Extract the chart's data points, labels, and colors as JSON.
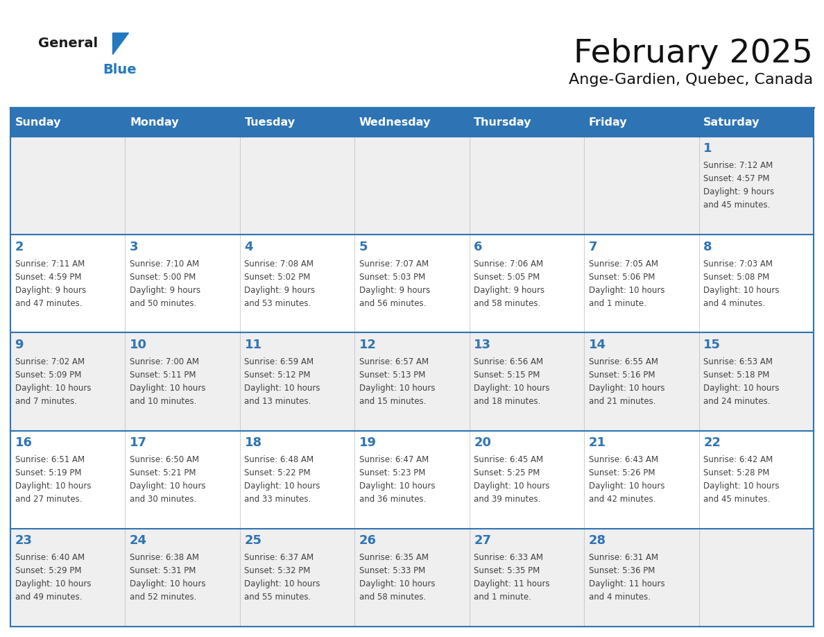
{
  "title": "February 2025",
  "subtitle": "Ange-Gardien, Quebec, Canada",
  "days_of_week": [
    "Sunday",
    "Monday",
    "Tuesday",
    "Wednesday",
    "Thursday",
    "Friday",
    "Saturday"
  ],
  "header_bg": "#2E74B5",
  "header_text": "#FFFFFF",
  "row_bg_light": "#FFFFFF",
  "row_bg_dark": "#EFEFEF",
  "separator_color": "#2E74B5",
  "day_number_color": "#2E74B5",
  "cell_text_color": "#404040",
  "logo_general_color": "#1a1a1a",
  "logo_blue_color": "#2478BE",
  "weeks": [
    {
      "days": [
        {
          "date": null,
          "info": null
        },
        {
          "date": null,
          "info": null
        },
        {
          "date": null,
          "info": null
        },
        {
          "date": null,
          "info": null
        },
        {
          "date": null,
          "info": null
        },
        {
          "date": null,
          "info": null
        },
        {
          "date": 1,
          "info": "Sunrise: 7:12 AM\nSunset: 4:57 PM\nDaylight: 9 hours\nand 45 minutes."
        }
      ]
    },
    {
      "days": [
        {
          "date": 2,
          "info": "Sunrise: 7:11 AM\nSunset: 4:59 PM\nDaylight: 9 hours\nand 47 minutes."
        },
        {
          "date": 3,
          "info": "Sunrise: 7:10 AM\nSunset: 5:00 PM\nDaylight: 9 hours\nand 50 minutes."
        },
        {
          "date": 4,
          "info": "Sunrise: 7:08 AM\nSunset: 5:02 PM\nDaylight: 9 hours\nand 53 minutes."
        },
        {
          "date": 5,
          "info": "Sunrise: 7:07 AM\nSunset: 5:03 PM\nDaylight: 9 hours\nand 56 minutes."
        },
        {
          "date": 6,
          "info": "Sunrise: 7:06 AM\nSunset: 5:05 PM\nDaylight: 9 hours\nand 58 minutes."
        },
        {
          "date": 7,
          "info": "Sunrise: 7:05 AM\nSunset: 5:06 PM\nDaylight: 10 hours\nand 1 minute."
        },
        {
          "date": 8,
          "info": "Sunrise: 7:03 AM\nSunset: 5:08 PM\nDaylight: 10 hours\nand 4 minutes."
        }
      ]
    },
    {
      "days": [
        {
          "date": 9,
          "info": "Sunrise: 7:02 AM\nSunset: 5:09 PM\nDaylight: 10 hours\nand 7 minutes."
        },
        {
          "date": 10,
          "info": "Sunrise: 7:00 AM\nSunset: 5:11 PM\nDaylight: 10 hours\nand 10 minutes."
        },
        {
          "date": 11,
          "info": "Sunrise: 6:59 AM\nSunset: 5:12 PM\nDaylight: 10 hours\nand 13 minutes."
        },
        {
          "date": 12,
          "info": "Sunrise: 6:57 AM\nSunset: 5:13 PM\nDaylight: 10 hours\nand 15 minutes."
        },
        {
          "date": 13,
          "info": "Sunrise: 6:56 AM\nSunset: 5:15 PM\nDaylight: 10 hours\nand 18 minutes."
        },
        {
          "date": 14,
          "info": "Sunrise: 6:55 AM\nSunset: 5:16 PM\nDaylight: 10 hours\nand 21 minutes."
        },
        {
          "date": 15,
          "info": "Sunrise: 6:53 AM\nSunset: 5:18 PM\nDaylight: 10 hours\nand 24 minutes."
        }
      ]
    },
    {
      "days": [
        {
          "date": 16,
          "info": "Sunrise: 6:51 AM\nSunset: 5:19 PM\nDaylight: 10 hours\nand 27 minutes."
        },
        {
          "date": 17,
          "info": "Sunrise: 6:50 AM\nSunset: 5:21 PM\nDaylight: 10 hours\nand 30 minutes."
        },
        {
          "date": 18,
          "info": "Sunrise: 6:48 AM\nSunset: 5:22 PM\nDaylight: 10 hours\nand 33 minutes."
        },
        {
          "date": 19,
          "info": "Sunrise: 6:47 AM\nSunset: 5:23 PM\nDaylight: 10 hours\nand 36 minutes."
        },
        {
          "date": 20,
          "info": "Sunrise: 6:45 AM\nSunset: 5:25 PM\nDaylight: 10 hours\nand 39 minutes."
        },
        {
          "date": 21,
          "info": "Sunrise: 6:43 AM\nSunset: 5:26 PM\nDaylight: 10 hours\nand 42 minutes."
        },
        {
          "date": 22,
          "info": "Sunrise: 6:42 AM\nSunset: 5:28 PM\nDaylight: 10 hours\nand 45 minutes."
        }
      ]
    },
    {
      "days": [
        {
          "date": 23,
          "info": "Sunrise: 6:40 AM\nSunset: 5:29 PM\nDaylight: 10 hours\nand 49 minutes."
        },
        {
          "date": 24,
          "info": "Sunrise: 6:38 AM\nSunset: 5:31 PM\nDaylight: 10 hours\nand 52 minutes."
        },
        {
          "date": 25,
          "info": "Sunrise: 6:37 AM\nSunset: 5:32 PM\nDaylight: 10 hours\nand 55 minutes."
        },
        {
          "date": 26,
          "info": "Sunrise: 6:35 AM\nSunset: 5:33 PM\nDaylight: 10 hours\nand 58 minutes."
        },
        {
          "date": 27,
          "info": "Sunrise: 6:33 AM\nSunset: 5:35 PM\nDaylight: 11 hours\nand 1 minute."
        },
        {
          "date": 28,
          "info": "Sunrise: 6:31 AM\nSunset: 5:36 PM\nDaylight: 11 hours\nand 4 minutes."
        },
        {
          "date": null,
          "info": null
        }
      ]
    }
  ]
}
